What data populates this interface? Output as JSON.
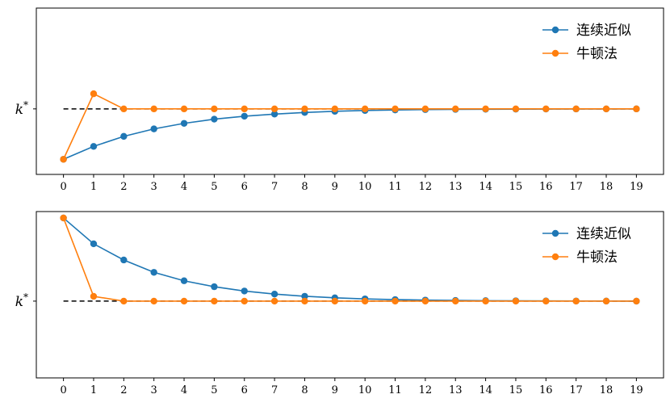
{
  "chart_data": [
    {
      "type": "line",
      "x": [
        0,
        1,
        2,
        3,
        4,
        5,
        6,
        7,
        8,
        9,
        10,
        11,
        12,
        13,
        14,
        15,
        16,
        17,
        18,
        19
      ],
      "xlim": [
        -0.9,
        19.9
      ],
      "ylim": [
        -0.13,
        0.2
      ],
      "grid": false,
      "legend_position": "top-right",
      "reference_line": {
        "y": 0,
        "style": "dashed",
        "color": "#000000",
        "label": "k*"
      },
      "ytick_label": "k",
      "ytick_sup": "*",
      "series": [
        {
          "name": "连续近似",
          "color": "#1f77b4",
          "values": [
            -0.1,
            -0.0744,
            -0.0545,
            -0.0397,
            -0.0287,
            -0.0204,
            -0.0145,
            -0.0103,
            -0.0071,
            -0.0048,
            -0.0032,
            -0.0021,
            -0.0014,
            -0.001,
            -0.0007,
            -0.0005,
            -0.0003,
            -0.0002,
            -0.0001,
            0
          ]
        },
        {
          "name": "牛顿法",
          "color": "#ff7f0e",
          "values": [
            -0.1,
            0.03,
            0,
            0,
            0,
            0,
            0,
            0,
            0,
            0,
            0,
            0,
            0,
            0,
            0,
            0,
            0,
            0,
            0,
            0
          ]
        }
      ]
    },
    {
      "type": "line",
      "x": [
        0,
        1,
        2,
        3,
        4,
        5,
        6,
        7,
        8,
        9,
        10,
        11,
        12,
        13,
        14,
        15,
        16,
        17,
        18,
        19
      ],
      "xlim": [
        -0.9,
        19.9
      ],
      "ylim": [
        -0.12,
        0.14
      ],
      "grid": false,
      "legend_position": "top-right",
      "reference_line": {
        "y": 0,
        "style": "dashed",
        "color": "#000000",
        "label": "k*"
      },
      "ytick_label": "k",
      "ytick_sup": "*",
      "series": [
        {
          "name": "连续近似",
          "color": "#1f77b4",
          "values": [
            0.13,
            0.0896,
            0.0643,
            0.045,
            0.0318,
            0.0225,
            0.0158,
            0.011,
            0.0076,
            0.0052,
            0.0035,
            0.0024,
            0.0016,
            0.0011,
            0.0007,
            0.0005,
            0.0003,
            0.0002,
            0.0001,
            0
          ]
        },
        {
          "name": "牛顿法",
          "color": "#ff7f0e",
          "values": [
            0.13,
            0.0075,
            0,
            0,
            0,
            0,
            0,
            0,
            0,
            0,
            0,
            0,
            0,
            0,
            0,
            0,
            0,
            0,
            0,
            0
          ]
        }
      ]
    }
  ]
}
